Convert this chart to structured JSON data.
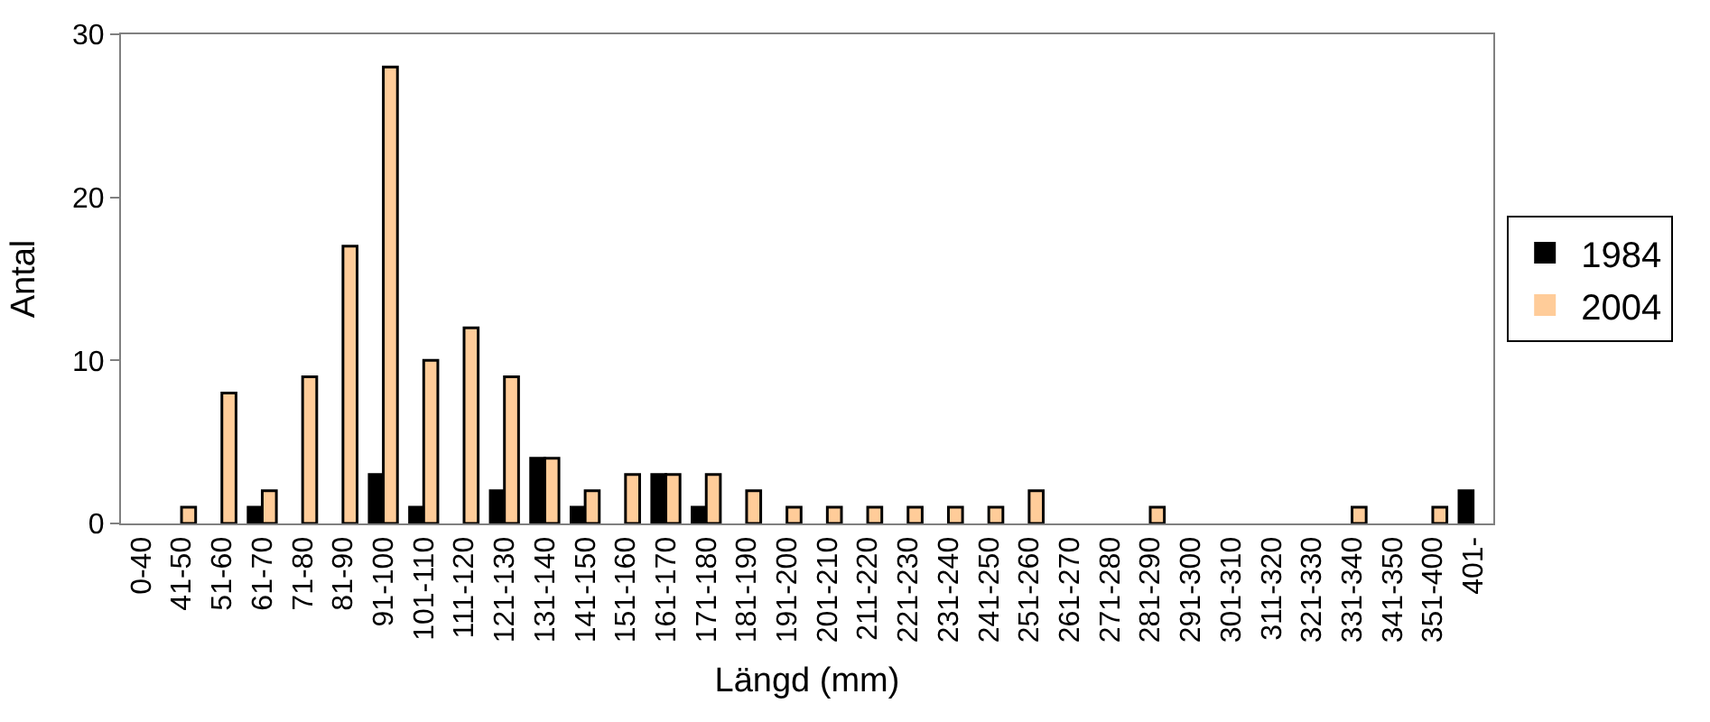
{
  "chart_data": {
    "type": "bar",
    "xlabel": "Längd (mm)",
    "ylabel": "Antal",
    "categories": [
      "0-40",
      "41-50",
      "51-60",
      "61-70",
      "71-80",
      "81-90",
      "91-100",
      "101-110",
      "111-120",
      "121-130",
      "131-140",
      "141-150",
      "151-160",
      "161-170",
      "171-180",
      "181-190",
      "191-200",
      "201-210",
      "211-220",
      "221-230",
      "231-240",
      "241-250",
      "251-260",
      "261-270",
      "271-280",
      "281-290",
      "291-300",
      "301-310",
      "311-320",
      "321-330",
      "331-340",
      "341-350",
      "351-400",
      "401-"
    ],
    "series": [
      {
        "name": "1984",
        "color": "#000000",
        "values": [
          0,
          0,
          0,
          1,
          0,
          0,
          3,
          1,
          0,
          2,
          4,
          1,
          0,
          3,
          1,
          0,
          0,
          0,
          0,
          0,
          0,
          0,
          0,
          0,
          0,
          0,
          0,
          0,
          0,
          0,
          0,
          0,
          0,
          2
        ]
      },
      {
        "name": "2004",
        "color": "#ffcc99",
        "values": [
          0,
          1,
          8,
          2,
          9,
          17,
          28,
          10,
          12,
          9,
          4,
          2,
          3,
          3,
          3,
          2,
          1,
          1,
          1,
          1,
          1,
          1,
          2,
          0,
          0,
          1,
          0,
          0,
          0,
          0,
          1,
          0,
          1,
          0
        ]
      }
    ],
    "ylim": [
      0,
      30
    ],
    "yticks": [
      0,
      10,
      20,
      30
    ],
    "grid": false,
    "legend": "right"
  }
}
